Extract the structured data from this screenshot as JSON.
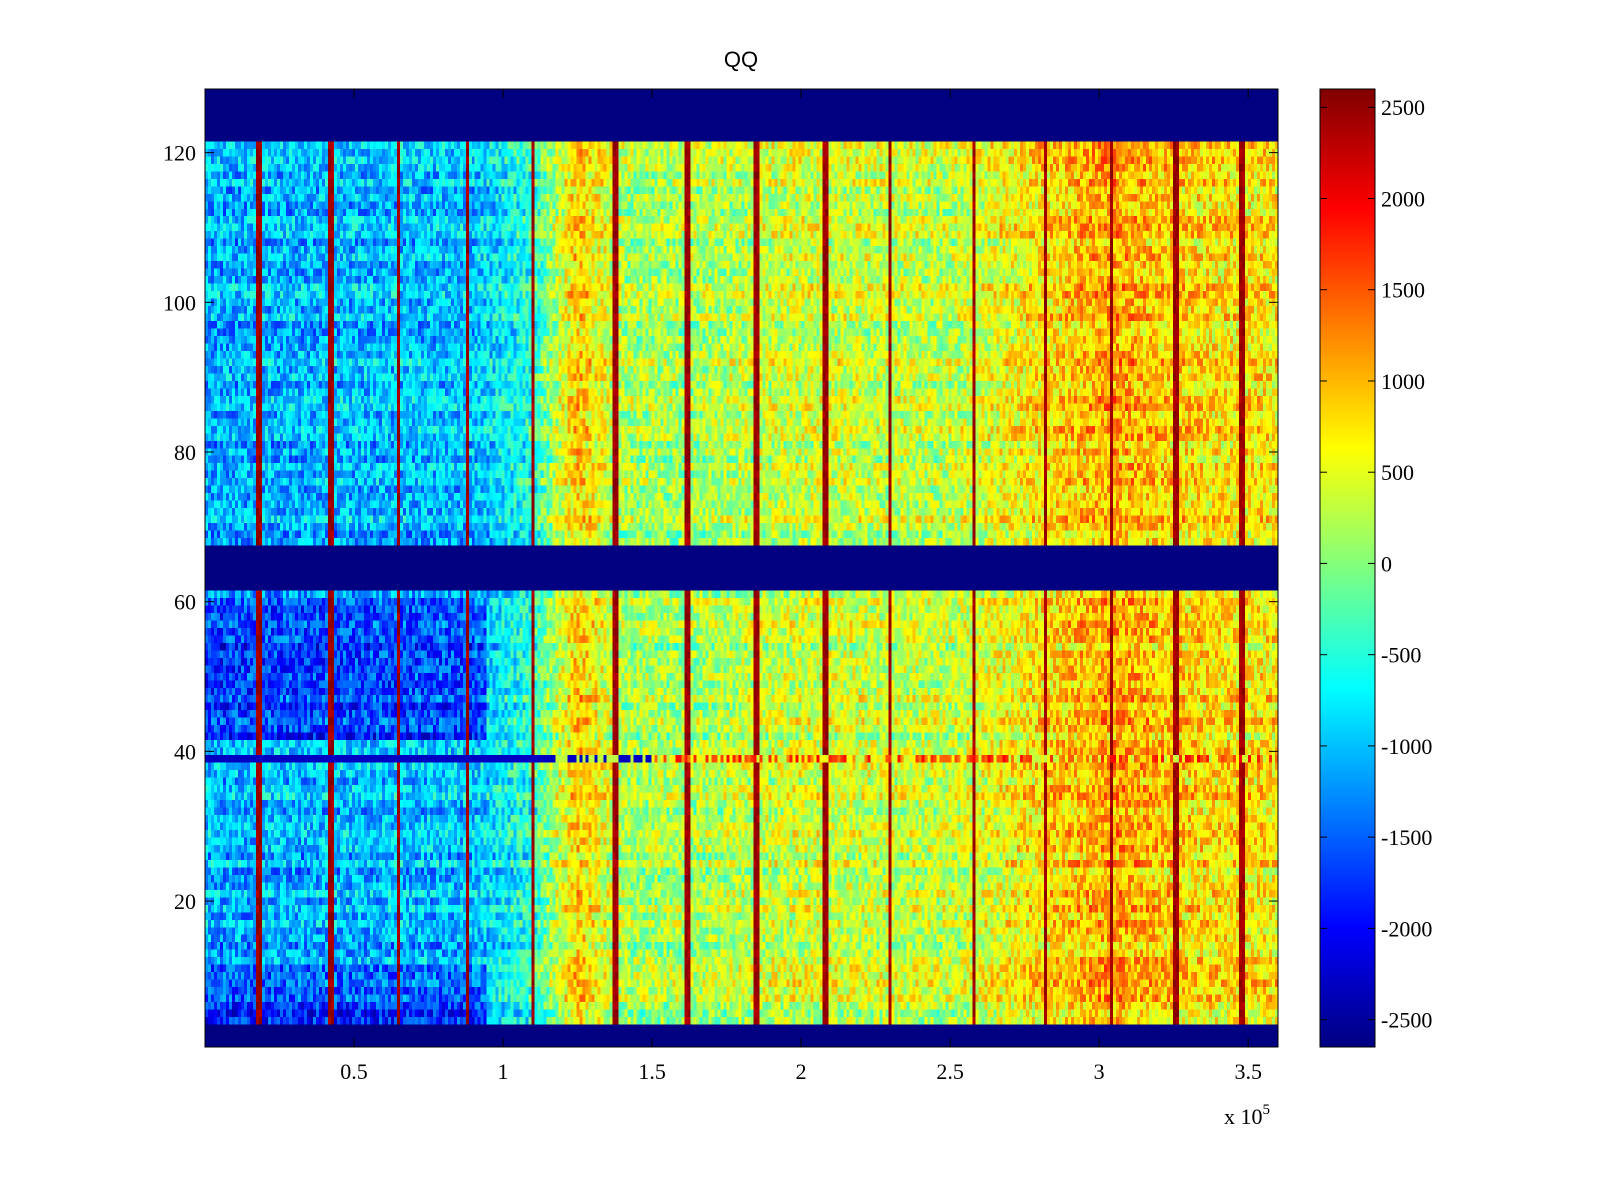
{
  "chart_data": {
    "type": "heatmap",
    "title": "QQ",
    "xlabel": "",
    "ylabel": "",
    "x_multiplier_label": "x 10",
    "x_multiplier_exponent": "5",
    "xlim": [
      0,
      3.6
    ],
    "ylim": [
      0.5,
      128.5
    ],
    "x_ticks": [
      0.5,
      1,
      1.5,
      2,
      2.5,
      3,
      3.5
    ],
    "x_tick_labels": [
      "0.5",
      "1",
      "1.5",
      "2",
      "2.5",
      "3",
      "3.5"
    ],
    "y_ticks": [
      20,
      40,
      60,
      80,
      100,
      120
    ],
    "y_tick_labels": [
      "20",
      "40",
      "60",
      "80",
      "100",
      "120"
    ],
    "colormap": "jet",
    "clim": [
      -2650,
      2600
    ],
    "colorbar_ticks": [
      2500,
      2000,
      1500,
      1000,
      500,
      0,
      -500,
      -1000,
      -1500,
      -2000,
      -2500
    ],
    "colorbar_tick_labels": [
      "2500",
      "2000",
      "1500",
      "1000",
      "500",
      "0",
      "-500",
      "-1000",
      "-1500",
      "-2000",
      "-2500"
    ],
    "saturated_row_bands": [
      {
        "y_from": 0.5,
        "y_to": 3.5,
        "value": -2650
      },
      {
        "y_from": 61.5,
        "y_to": 67.5,
        "value": -2650
      },
      {
        "y_from": 121.5,
        "y_to": 128.5,
        "value": -2650
      }
    ],
    "bright_columns_x": [
      0.18,
      0.42,
      0.65,
      0.88,
      1.1,
      1.38,
      1.62,
      1.85,
      2.08,
      2.3,
      2.58,
      2.82,
      3.04,
      3.26,
      3.48
    ],
    "column_trend": [
      {
        "x": 0.0,
        "value": -1100
      },
      {
        "x": 0.9,
        "value": -1000
      },
      {
        "x": 1.1,
        "value": -500
      },
      {
        "x": 1.25,
        "value": 900
      },
      {
        "x": 1.4,
        "value": 200
      },
      {
        "x": 1.6,
        "value": 150
      },
      {
        "x": 2.0,
        "value": 400
      },
      {
        "x": 2.5,
        "value": 300
      },
      {
        "x": 3.05,
        "value": 1100
      },
      {
        "x": 3.3,
        "value": 800
      },
      {
        "x": 3.6,
        "value": 700
      }
    ],
    "anomaly_row": {
      "y": 39,
      "value_low": -2300,
      "value_high": 2000,
      "switch_x": 1.5
    }
  }
}
